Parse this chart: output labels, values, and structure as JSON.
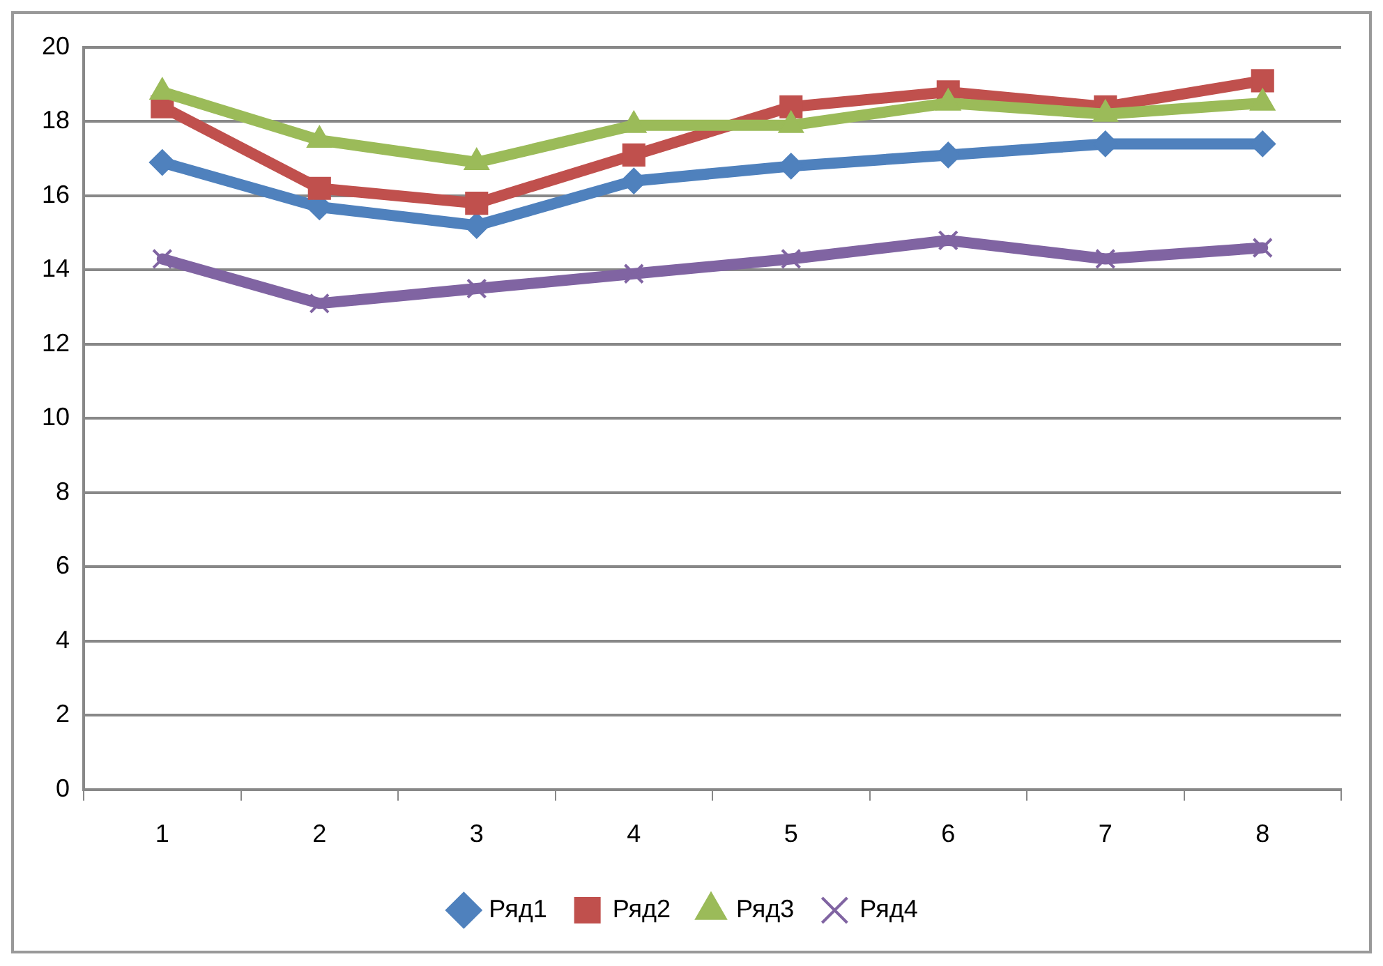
{
  "chart_data": {
    "type": "line",
    "categories": [
      "1",
      "2",
      "3",
      "4",
      "5",
      "6",
      "7",
      "8"
    ],
    "ylim": [
      0,
      20
    ],
    "yticks": [
      0,
      2,
      4,
      6,
      8,
      10,
      12,
      14,
      16,
      18,
      20
    ],
    "grid": "y",
    "legend": "bottom",
    "line_style": "solid",
    "series": [
      {
        "name": "Ряд1",
        "color": "#4f81bd",
        "marker": "diamond",
        "values": [
          16.9,
          15.7,
          15.2,
          16.4,
          16.8,
          17.1,
          17.4,
          17.4
        ]
      },
      {
        "name": "Ряд2",
        "color": "#c0504d",
        "marker": "square",
        "values": [
          18.4,
          16.2,
          15.8,
          17.1,
          18.4,
          18.8,
          18.4,
          19.1
        ]
      },
      {
        "name": "Ряд3",
        "color": "#9bbb59",
        "marker": "triangle",
        "values": [
          18.8,
          17.5,
          16.9,
          17.9,
          17.9,
          18.5,
          18.2,
          18.5
        ]
      },
      {
        "name": "Ряд4",
        "color": "#8064a2",
        "marker": "cross",
        "values": [
          14.3,
          13.1,
          13.5,
          13.9,
          14.3,
          14.8,
          14.3,
          14.6
        ]
      }
    ]
  }
}
